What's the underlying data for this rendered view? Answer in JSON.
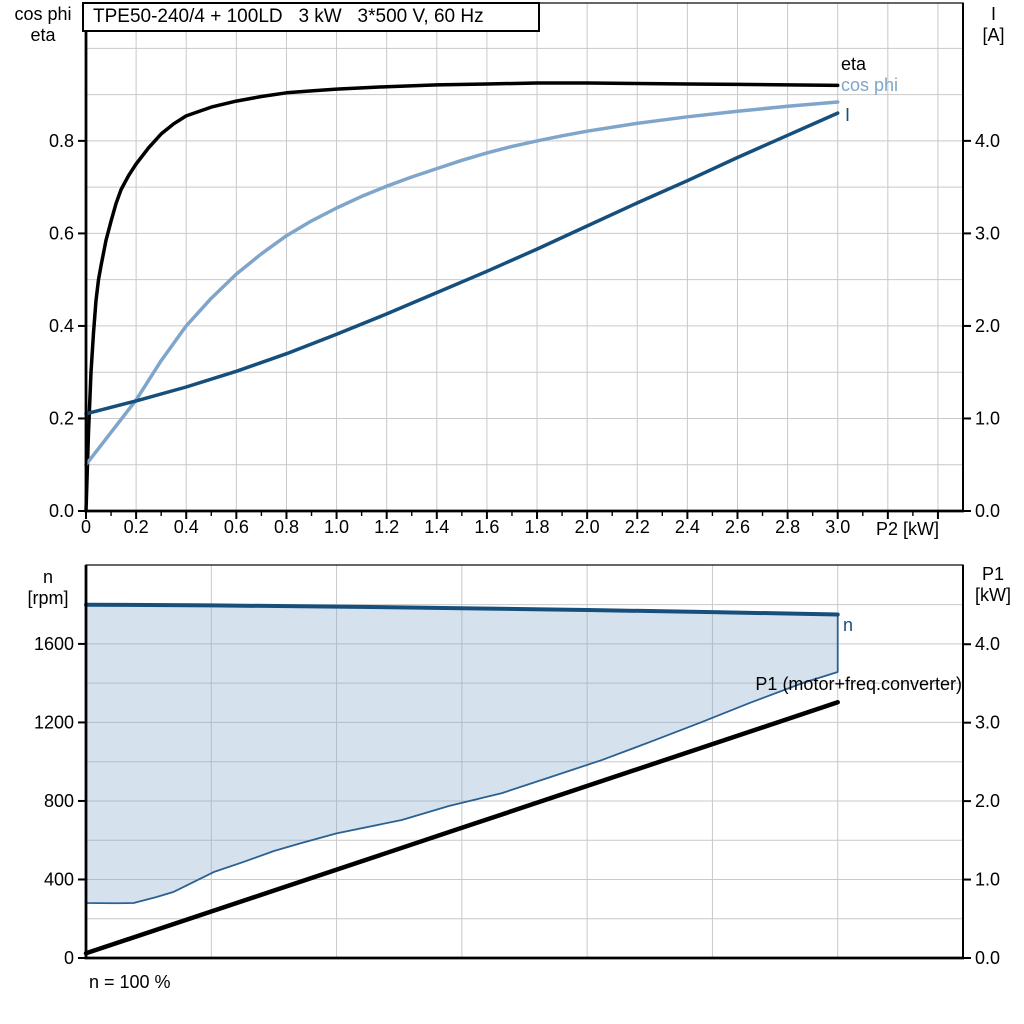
{
  "title_box": "TPE50-240/4 + 100LD   3 kW   3*500 V, 60 Hz",
  "colors": {
    "eta": "#000000",
    "cos_phi": "#7fa6ca",
    "current": "#174f7c",
    "speed": "#174f7c",
    "p1_line": "#000000",
    "band_fill": "rgba(127,166,202,0.33)",
    "band_edge": "#2b6093",
    "grid": "#c9c9c9",
    "axis": "#000000"
  },
  "chart_data": [
    {
      "type": "line",
      "title": "TPE50-240/4 + 100LD   3 kW   3*500 V, 60 Hz",
      "x_axis": {
        "label": "P2 [kW]",
        "range": [
          0,
          3.5
        ],
        "tick_values": [
          0,
          0.2,
          0.4,
          0.6,
          0.8,
          1.0,
          1.2,
          1.4,
          1.6,
          1.8,
          2.0,
          2.2,
          2.4,
          2.6,
          2.8,
          3.0
        ],
        "tick_labels": [
          "0",
          "0.2",
          "0.4",
          "0.6",
          "0.8",
          "1.0",
          "1.2",
          "1.4",
          "1.6",
          "1.8",
          "2.0",
          "2.2",
          "2.4",
          "2.6",
          "2.8",
          "3.0"
        ],
        "major_tick_step": 0.2,
        "minor_tick_step": 0.1,
        "grid_step": 0.2
      },
      "y_left": {
        "label_lines": [
          "cos phi",
          "eta"
        ],
        "range": [
          0,
          1.098
        ],
        "tick_values": [
          0,
          0.2,
          0.4,
          0.6,
          0.8
        ],
        "tick_labels": [
          "0.0",
          "0.2",
          "0.4",
          "0.6",
          "0.8"
        ],
        "grid_step": 0.1
      },
      "y_right": {
        "label_lines": [
          "I",
          "[A]"
        ],
        "range": [
          0,
          5.49
        ],
        "tick_values": [
          0,
          1,
          2,
          3,
          4
        ],
        "tick_labels": [
          "0.0",
          "1.0",
          "2.0",
          "3.0",
          "4.0"
        ]
      },
      "series": [
        {
          "name": "eta",
          "axis": "left",
          "color": "#000000",
          "width": 3.5,
          "points": [
            [
              0,
              0
            ],
            [
              0.01,
              0.17
            ],
            [
              0.02,
              0.3
            ],
            [
              0.03,
              0.385
            ],
            [
              0.04,
              0.455
            ],
            [
              0.05,
              0.5
            ],
            [
              0.06,
              0.53
            ],
            [
              0.08,
              0.585
            ],
            [
              0.1,
              0.627
            ],
            [
              0.12,
              0.665
            ],
            [
              0.14,
              0.695
            ],
            [
              0.17,
              0.725
            ],
            [
              0.2,
              0.75
            ],
            [
              0.25,
              0.785
            ],
            [
              0.3,
              0.815
            ],
            [
              0.35,
              0.837
            ],
            [
              0.4,
              0.854
            ],
            [
              0.5,
              0.873
            ],
            [
              0.6,
              0.886
            ],
            [
              0.7,
              0.896
            ],
            [
              0.8,
              0.904
            ],
            [
              0.9,
              0.908
            ],
            [
              1.0,
              0.912
            ],
            [
              1.2,
              0.917
            ],
            [
              1.4,
              0.921
            ],
            [
              1.6,
              0.923
            ],
            [
              1.8,
              0.925
            ],
            [
              2.0,
              0.925
            ],
            [
              2.2,
              0.924
            ],
            [
              2.4,
              0.923
            ],
            [
              2.6,
              0.922
            ],
            [
              2.8,
              0.921
            ],
            [
              3.0,
              0.92
            ]
          ]
        },
        {
          "name": "cos phi",
          "axis": "left",
          "color": "#7fa6ca",
          "width": 3.5,
          "points": [
            [
              0,
              0.1
            ],
            [
              0.1,
              0.17
            ],
            [
              0.2,
              0.24
            ],
            [
              0.3,
              0.325
            ],
            [
              0.4,
              0.4
            ],
            [
              0.5,
              0.46
            ],
            [
              0.6,
              0.512
            ],
            [
              0.7,
              0.556
            ],
            [
              0.8,
              0.595
            ],
            [
              0.9,
              0.627
            ],
            [
              1.0,
              0.655
            ],
            [
              1.1,
              0.68
            ],
            [
              1.2,
              0.702
            ],
            [
              1.3,
              0.722
            ],
            [
              1.4,
              0.74
            ],
            [
              1.5,
              0.758
            ],
            [
              1.6,
              0.774
            ],
            [
              1.7,
              0.788
            ],
            [
              1.8,
              0.8
            ],
            [
              1.9,
              0.811
            ],
            [
              2.0,
              0.821
            ],
            [
              2.2,
              0.838
            ],
            [
              2.4,
              0.852
            ],
            [
              2.6,
              0.864
            ],
            [
              2.8,
              0.875
            ],
            [
              3.0,
              0.884
            ]
          ]
        },
        {
          "name": "I",
          "axis": "right",
          "color": "#174f7c",
          "width": 3.5,
          "points": [
            [
              0,
              1.05
            ],
            [
              0.2,
              1.19
            ],
            [
              0.4,
              1.34
            ],
            [
              0.6,
              1.51
            ],
            [
              0.8,
              1.7
            ],
            [
              1.0,
              1.91
            ],
            [
              1.2,
              2.13
            ],
            [
              1.4,
              2.36
            ],
            [
              1.6,
              2.59
            ],
            [
              1.8,
              2.83
            ],
            [
              2.0,
              3.08
            ],
            [
              2.2,
              3.33
            ],
            [
              2.4,
              3.57
            ],
            [
              2.6,
              3.82
            ],
            [
              2.8,
              4.06
            ],
            [
              3.0,
              4.3
            ]
          ]
        }
      ]
    },
    {
      "type": "area",
      "x_axis": {
        "label": "",
        "range": [
          0,
          3.5
        ],
        "tick_values": [],
        "tick_labels": [],
        "grid_step": 0.5
      },
      "y_left": {
        "label_lines": [
          "n",
          "[rpm]"
        ],
        "range": [
          0,
          2002
        ],
        "tick_values": [
          0,
          400,
          800,
          1200,
          1600
        ],
        "tick_labels": [
          "0",
          "400",
          "800",
          "1200",
          "1600"
        ],
        "grid_step": 200
      },
      "y_right": {
        "label_lines": [
          "P1",
          "[kW]"
        ],
        "range": [
          0,
          5.01
        ],
        "tick_values": [
          0,
          1,
          2,
          3,
          4
        ],
        "tick_labels": [
          "0.0",
          "1.0",
          "2.0",
          "3.0",
          "4.0"
        ]
      },
      "band": {
        "fill": "rgba(127,166,202,0.33)",
        "edge_color": "#2b6093",
        "edge_width": 1.8,
        "lower_points": [
          [
            0,
            280
          ],
          [
            0.12,
            279
          ],
          [
            0.19,
            280
          ],
          [
            0.28,
            310
          ],
          [
            0.35,
            337
          ],
          [
            0.45,
            400
          ],
          [
            0.51,
            438
          ],
          [
            0.63,
            490
          ],
          [
            0.75,
            545
          ],
          [
            0.86,
            586
          ],
          [
            1.0,
            635
          ],
          [
            1.26,
            703
          ],
          [
            1.45,
            775
          ],
          [
            1.66,
            840
          ],
          [
            1.85,
            920
          ],
          [
            2.06,
            1009
          ],
          [
            2.25,
            1100
          ],
          [
            2.46,
            1203
          ],
          [
            2.65,
            1300
          ],
          [
            2.86,
            1401
          ],
          [
            3.0,
            1457
          ]
        ]
      },
      "series": [
        {
          "name": "n",
          "axis": "left",
          "color": "#174f7c",
          "width": 4,
          "points": [
            [
              0,
              1800
            ],
            [
              0.5,
              1796
            ],
            [
              1.0,
              1790
            ],
            [
              1.5,
              1782
            ],
            [
              2.0,
              1773
            ],
            [
              2.5,
              1762
            ],
            [
              3.0,
              1750
            ]
          ]
        },
        {
          "name": "P1 (motor+freq.converter)",
          "axis": "right",
          "color": "#000000",
          "width": 4.5,
          "points": [
            [
              0,
              0.06
            ],
            [
              1.5,
              1.66
            ],
            [
              3.0,
              3.26
            ]
          ]
        }
      ],
      "annotation": "n = 100 %"
    }
  ]
}
